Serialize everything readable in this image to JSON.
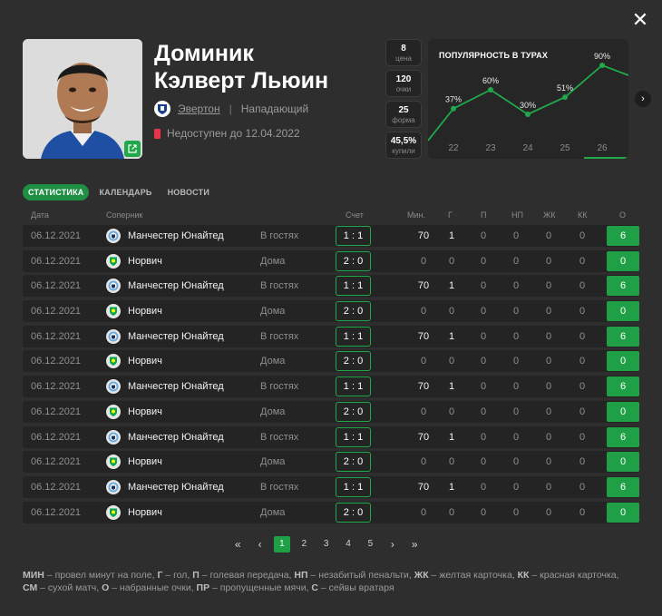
{
  "player": {
    "first_name": "Доминик",
    "last_name": "Кэлверт Льюин",
    "team": "Эвертон",
    "position": "Нападающий",
    "status": "Недоступен до 12.04.2022"
  },
  "stats": [
    {
      "value": "8",
      "label": "цена"
    },
    {
      "value": "120",
      "label": "очки"
    },
    {
      "value": "25",
      "label": "форма"
    },
    {
      "value": "45,5%",
      "label": "купили"
    }
  ],
  "popularity": {
    "title": "ПОПУЛЯРНОСТЬ В ТУРАХ",
    "chart_data": {
      "type": "line",
      "title": "ПОПУЛЯРНОСТЬ В ТУРАХ",
      "x": [
        "22",
        "23",
        "24",
        "25",
        "26"
      ],
      "values": [
        37,
        60,
        30,
        51,
        90
      ],
      "labels": [
        "37%",
        "60%",
        "30%",
        "51%",
        "90%"
      ],
      "color": "#20a84a"
    }
  },
  "tabs": [
    "СТАТИСТИКА",
    "КАЛЕНДАРЬ",
    "НОВОСТИ"
  ],
  "table": {
    "headers": {
      "date": "Дата",
      "opponent": "Соперник",
      "score": "Счет",
      "min": "Мин.",
      "g": "Г",
      "a": "П",
      "np": "НП",
      "yc": "ЖК",
      "rc": "КК",
      "pts": "О"
    },
    "rows": [
      {
        "date": "06.12.2021",
        "club": "Манчестер Юнайтед",
        "venue": "В гостях",
        "score": "1 : 1",
        "min": "70",
        "g": "1",
        "a": "0",
        "np": "0",
        "yc": "0",
        "rc": "0",
        "pts": "6",
        "played": true
      },
      {
        "date": "06.12.2021",
        "club": "Норвич",
        "venue": "Дома",
        "score": "2 : 0",
        "min": "0",
        "g": "0",
        "a": "0",
        "np": "0",
        "yc": "0",
        "rc": "0",
        "pts": "0",
        "played": false
      },
      {
        "date": "06.12.2021",
        "club": "Манчестер Юнайтед",
        "venue": "В гостях",
        "score": "1 : 1",
        "min": "70",
        "g": "1",
        "a": "0",
        "np": "0",
        "yc": "0",
        "rc": "0",
        "pts": "6",
        "played": true
      },
      {
        "date": "06.12.2021",
        "club": "Норвич",
        "venue": "Дома",
        "score": "2 : 0",
        "min": "0",
        "g": "0",
        "a": "0",
        "np": "0",
        "yc": "0",
        "rc": "0",
        "pts": "0",
        "played": false
      },
      {
        "date": "06.12.2021",
        "club": "Манчестер Юнайтед",
        "venue": "В гостях",
        "score": "1 : 1",
        "min": "70",
        "g": "1",
        "a": "0",
        "np": "0",
        "yc": "0",
        "rc": "0",
        "pts": "6",
        "played": true
      },
      {
        "date": "06.12.2021",
        "club": "Норвич",
        "venue": "Дома",
        "score": "2 : 0",
        "min": "0",
        "g": "0",
        "a": "0",
        "np": "0",
        "yc": "0",
        "rc": "0",
        "pts": "0",
        "played": false
      },
      {
        "date": "06.12.2021",
        "club": "Манчестер Юнайтед",
        "venue": "В гостях",
        "score": "1 : 1",
        "min": "70",
        "g": "1",
        "a": "0",
        "np": "0",
        "yc": "0",
        "rc": "0",
        "pts": "6",
        "played": true
      },
      {
        "date": "06.12.2021",
        "club": "Норвич",
        "venue": "Дома",
        "score": "2 : 0",
        "min": "0",
        "g": "0",
        "a": "0",
        "np": "0",
        "yc": "0",
        "rc": "0",
        "pts": "0",
        "played": false
      },
      {
        "date": "06.12.2021",
        "club": "Манчестер Юнайтед",
        "venue": "В гостях",
        "score": "1 : 1",
        "min": "70",
        "g": "1",
        "a": "0",
        "np": "0",
        "yc": "0",
        "rc": "0",
        "pts": "6",
        "played": true
      },
      {
        "date": "06.12.2021",
        "club": "Норвич",
        "venue": "Дома",
        "score": "2 : 0",
        "min": "0",
        "g": "0",
        "a": "0",
        "np": "0",
        "yc": "0",
        "rc": "0",
        "pts": "0",
        "played": false
      },
      {
        "date": "06.12.2021",
        "club": "Манчестер Юнайтед",
        "venue": "В гостях",
        "score": "1 : 1",
        "min": "70",
        "g": "1",
        "a": "0",
        "np": "0",
        "yc": "0",
        "rc": "0",
        "pts": "6",
        "played": true
      },
      {
        "date": "06.12.2021",
        "club": "Норвич",
        "venue": "Дома",
        "score": "2 : 0",
        "min": "0",
        "g": "0",
        "a": "0",
        "np": "0",
        "yc": "0",
        "rc": "0",
        "pts": "0",
        "played": false
      }
    ]
  },
  "pagination": {
    "pages": [
      "1",
      "2",
      "3",
      "4",
      "5"
    ],
    "current": "1",
    "first": "«",
    "prev": "‹",
    "next": "›",
    "last": "»"
  },
  "legend": [
    {
      "abbr": "МИН",
      "text": " – провел минут на поле, "
    },
    {
      "abbr": "Г",
      "text": " – гол, "
    },
    {
      "abbr": "П",
      "text": " – голевая передача, "
    },
    {
      "abbr": "НП",
      "text": " – незабитый пенальти, "
    },
    {
      "abbr": "ЖК",
      "text": " – желтая карточка, "
    },
    {
      "abbr": "КК",
      "text": " – красная карточка, "
    },
    {
      "abbr": "СМ",
      "text": " – сухой матч, "
    },
    {
      "abbr": "О",
      "text": " – набранные очки, "
    },
    {
      "abbr": "ПР",
      "text": " – пропущенные мячи, "
    },
    {
      "abbr": "С",
      "text": " – сейвы вратаря"
    }
  ],
  "colors": {
    "accent": "#20a84a",
    "status": "#e8334a",
    "background": "#2e2e2e"
  },
  "icons": {
    "close": "close-icon",
    "photo_link": "external-link-icon",
    "team": "everton-badge-icon",
    "next": "chevron-right-icon"
  }
}
